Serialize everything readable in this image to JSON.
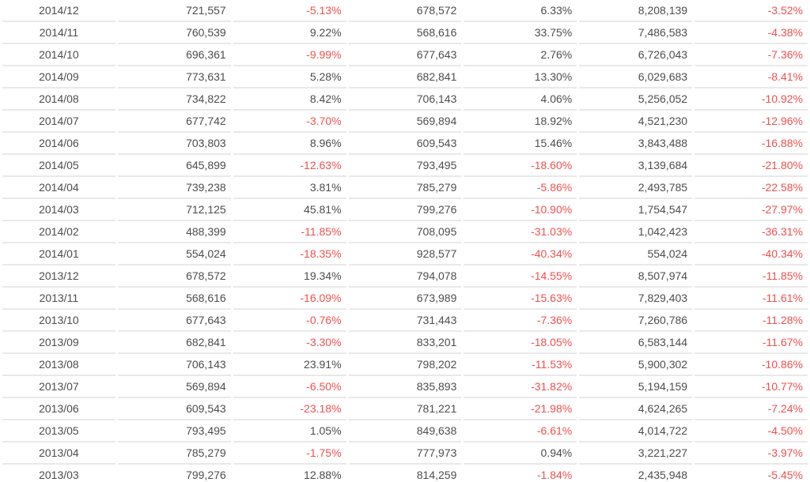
{
  "colors": {
    "text": "#4d4d4d",
    "negative": "#f2504f",
    "divider": "#e9e9e9",
    "background": "#ffffff"
  },
  "chart_data": {
    "type": "table",
    "headers_visible": false,
    "grid": "horizontal-row-dividers",
    "rows": [
      [
        "2014/12",
        "721,557",
        "-5.13%",
        "678,572",
        "6.33%",
        "8,208,139",
        "-3.52%"
      ],
      [
        "2014/11",
        "760,539",
        "9.22%",
        "568,616",
        "33.75%",
        "7,486,583",
        "-4.38%"
      ],
      [
        "2014/10",
        "696,361",
        "-9.99%",
        "677,643",
        "2.76%",
        "6,726,043",
        "-7.36%"
      ],
      [
        "2014/09",
        "773,631",
        "5.28%",
        "682,841",
        "13.30%",
        "6,029,683",
        "-8.41%"
      ],
      [
        "2014/08",
        "734,822",
        "8.42%",
        "706,143",
        "4.06%",
        "5,256,052",
        "-10.92%"
      ],
      [
        "2014/07",
        "677,742",
        "-3.70%",
        "569,894",
        "18.92%",
        "4,521,230",
        "-12.96%"
      ],
      [
        "2014/06",
        "703,803",
        "8.96%",
        "609,543",
        "15.46%",
        "3,843,488",
        "-16.88%"
      ],
      [
        "2014/05",
        "645,899",
        "-12.63%",
        "793,495",
        "-18.60%",
        "3,139,684",
        "-21.80%"
      ],
      [
        "2014/04",
        "739,238",
        "3.81%",
        "785,279",
        "-5.86%",
        "2,493,785",
        "-22.58%"
      ],
      [
        "2014/03",
        "712,125",
        "45.81%",
        "799,276",
        "-10.90%",
        "1,754,547",
        "-27.97%"
      ],
      [
        "2014/02",
        "488,399",
        "-11.85%",
        "708,095",
        "-31.03%",
        "1,042,423",
        "-36.31%"
      ],
      [
        "2014/01",
        "554,024",
        "-18.35%",
        "928,577",
        "-40.34%",
        "554,024",
        "-40.34%"
      ],
      [
        "2013/12",
        "678,572",
        "19.34%",
        "794,078",
        "-14.55%",
        "8,507,974",
        "-11.85%"
      ],
      [
        "2013/11",
        "568,616",
        "-16.09%",
        "673,989",
        "-15.63%",
        "7,829,403",
        "-11.61%"
      ],
      [
        "2013/10",
        "677,643",
        "-0.76%",
        "731,443",
        "-7.36%",
        "7,260,786",
        "-11.28%"
      ],
      [
        "2013/09",
        "682,841",
        "-3.30%",
        "833,201",
        "-18.05%",
        "6,583,144",
        "-11.67%"
      ],
      [
        "2013/08",
        "706,143",
        "23.91%",
        "798,202",
        "-11.53%",
        "5,900,302",
        "-10.86%"
      ],
      [
        "2013/07",
        "569,894",
        "-6.50%",
        "835,893",
        "-31.82%",
        "5,194,159",
        "-10.77%"
      ],
      [
        "2013/06",
        "609,543",
        "-23.18%",
        "781,221",
        "-21.98%",
        "4,624,265",
        "-7.24%"
      ],
      [
        "2013/05",
        "793,495",
        "1.05%",
        "849,638",
        "-6.61%",
        "4,014,722",
        "-4.50%"
      ],
      [
        "2013/04",
        "785,279",
        "-1.75%",
        "777,973",
        "0.94%",
        "3,221,227",
        "-3.97%"
      ],
      [
        "2013/03",
        "799,276",
        "12.88%",
        "814,259",
        "-1.84%",
        "2,435,948",
        "-5.45%"
      ]
    ]
  }
}
